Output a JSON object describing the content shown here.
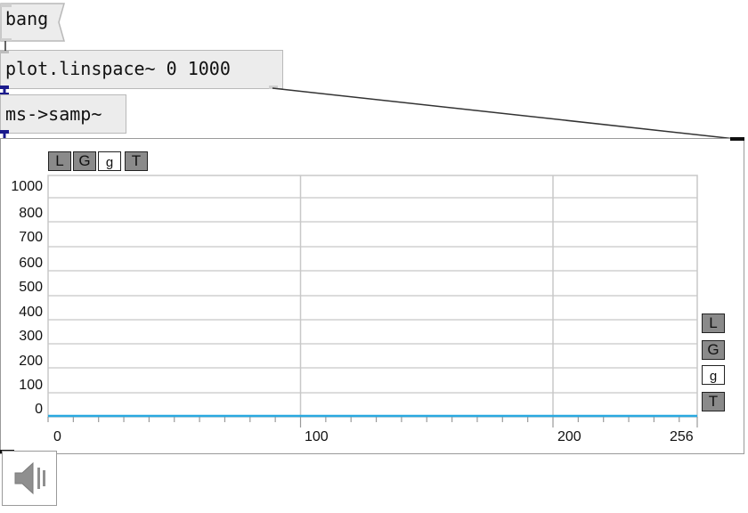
{
  "objects": {
    "bang_message": "bang",
    "linspace_object": "plot.linspace~ 0 1000",
    "ms_samp_object": "ms->samp~"
  },
  "plot": {
    "top_buttons": [
      "L",
      "G",
      "g",
      "T"
    ],
    "side_buttons": [
      "L",
      "G",
      "g",
      "T"
    ],
    "y_tick_labels": [
      "1000",
      "800",
      "700",
      "600",
      "500",
      "400",
      "300",
      "200",
      "100",
      "0"
    ],
    "x_tick_labels": [
      "0",
      "100",
      "200",
      "256"
    ],
    "trace_color": "#29a9e0",
    "grid_color": "#c8c8c8"
  },
  "chart_data": {
    "type": "line",
    "x": [
      0,
      256
    ],
    "y": [
      0,
      0
    ],
    "xlim": [
      0,
      256
    ],
    "ylim": [
      0,
      1000
    ],
    "grid": true
  },
  "speaker": {
    "icon": "speaker-icon"
  }
}
